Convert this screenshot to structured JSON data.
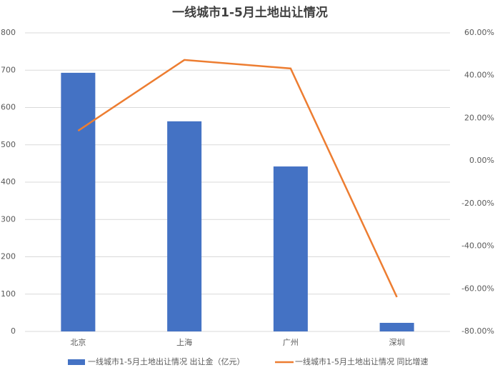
{
  "chart_data": {
    "type": "bar",
    "title": "一线城市1-5月土地出让情况",
    "categories": [
      "北京",
      "上海",
      "广州",
      "深圳"
    ],
    "series": [
      {
        "name": "一线城市1-5月土地出让情况 出让金（亿元）",
        "type": "bar",
        "color": "#4472c4",
        "values": [
          693,
          563,
          442,
          23
        ]
      },
      {
        "name": "一线城市1-5月土地出让情况 同比增速",
        "type": "line",
        "axis": "y2",
        "color": "#ed7d31",
        "values": [
          14.1,
          47.3,
          43.3,
          -63.9
        ]
      }
    ],
    "ylim": [
      0,
      800
    ],
    "yticks": [
      0,
      100,
      200,
      300,
      400,
      500,
      600,
      700,
      800
    ],
    "y2lim": [
      -80,
      60
    ],
    "y2ticks": [
      {
        "value": -80,
        "label": "-80.00%"
      },
      {
        "value": -60,
        "label": "-60.00%"
      },
      {
        "value": -40,
        "label": "-40.00%"
      },
      {
        "value": -20,
        "label": "-20.00%"
      },
      {
        "value": 0,
        "label": "0.00%"
      },
      {
        "value": 20,
        "label": "20.00%"
      },
      {
        "value": 40,
        "label": "40.00%"
      },
      {
        "value": 60,
        "label": "60.00%"
      }
    ],
    "grid": true,
    "legend": "bottom"
  }
}
